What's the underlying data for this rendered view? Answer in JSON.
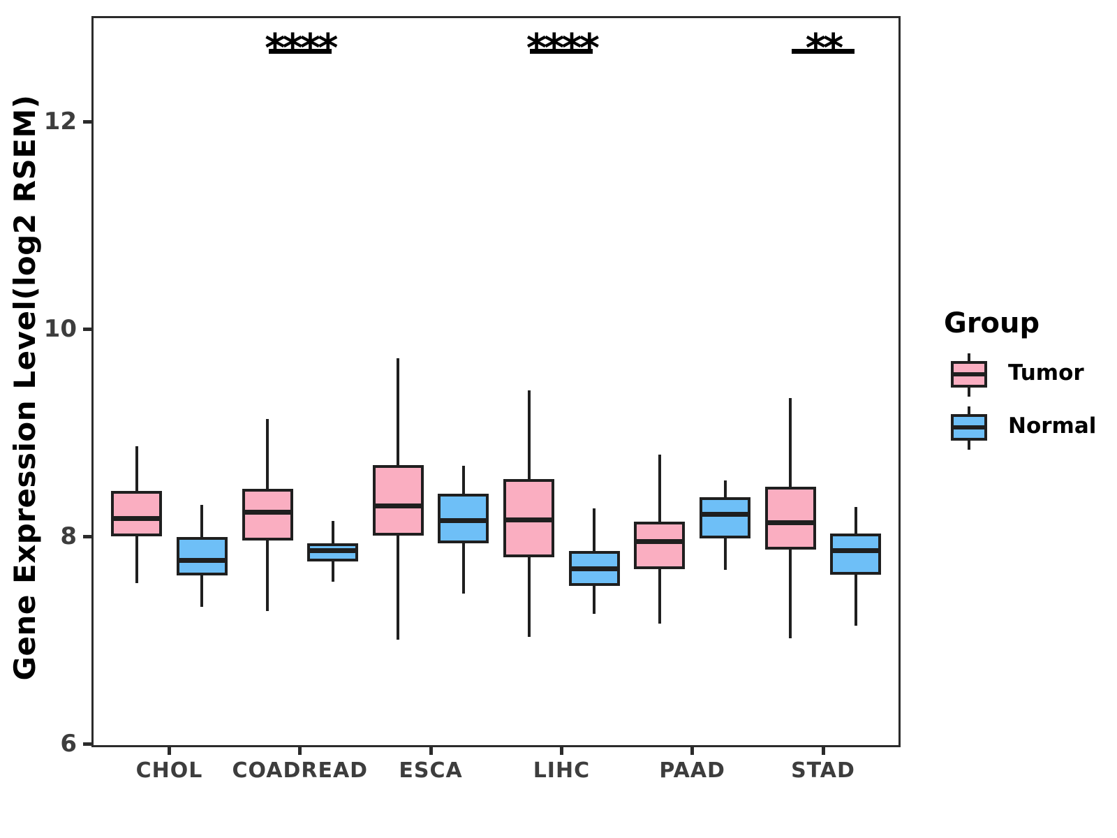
{
  "chart_data": {
    "type": "boxplot",
    "ylabel": "Gene Expression Level(log2 RSEM)",
    "xlabel": "",
    "categories": [
      "CHOL",
      "COADREAD",
      "ESCA",
      "LIHC",
      "PAAD",
      "STAD"
    ],
    "y_ticks": [
      6,
      8,
      10,
      12
    ],
    "ylim": [
      5.97,
      13.02
    ],
    "grid": false,
    "legend_title": "Group",
    "legend_position": "right",
    "box_outline_color": "#1f1f1f",
    "series": [
      {
        "name": "Tumor",
        "color": "#FAAEC1",
        "boxes": [
          {
            "min": 7.55,
            "q1": 8.0,
            "med": 8.17,
            "q3": 8.44,
            "max": 8.87
          },
          {
            "min": 7.28,
            "q1": 7.96,
            "med": 8.23,
            "q3": 8.46,
            "max": 9.13
          },
          {
            "min": 7.0,
            "q1": 8.01,
            "med": 8.29,
            "q3": 8.69,
            "max": 9.72
          },
          {
            "min": 7.03,
            "q1": 7.8,
            "med": 8.16,
            "q3": 8.55,
            "max": 9.41
          },
          {
            "min": 7.16,
            "q1": 7.68,
            "med": 7.95,
            "q3": 8.14,
            "max": 8.79
          },
          {
            "min": 7.02,
            "q1": 7.87,
            "med": 8.13,
            "q3": 8.48,
            "max": 9.33
          }
        ]
      },
      {
        "name": "Normal",
        "color": "#6EBFF7",
        "boxes": [
          {
            "min": 7.32,
            "q1": 7.62,
            "med": 7.77,
            "q3": 7.99,
            "max": 8.3
          },
          {
            "min": 7.56,
            "q1": 7.76,
            "med": 7.86,
            "q3": 7.93,
            "max": 8.15
          },
          {
            "min": 7.45,
            "q1": 7.93,
            "med": 8.15,
            "q3": 8.41,
            "max": 8.68
          },
          {
            "min": 7.25,
            "q1": 7.52,
            "med": 7.69,
            "q3": 7.86,
            "max": 8.27
          },
          {
            "min": 7.68,
            "q1": 7.98,
            "med": 8.21,
            "q3": 8.38,
            "max": 8.54
          },
          {
            "min": 7.14,
            "q1": 7.63,
            "med": 7.86,
            "q3": 8.03,
            "max": 8.28
          }
        ]
      }
    ],
    "significance": [
      {
        "category": "COADREAD",
        "label": "****"
      },
      {
        "category": "LIHC",
        "label": "****"
      },
      {
        "category": "STAD",
        "label": "**"
      }
    ]
  }
}
